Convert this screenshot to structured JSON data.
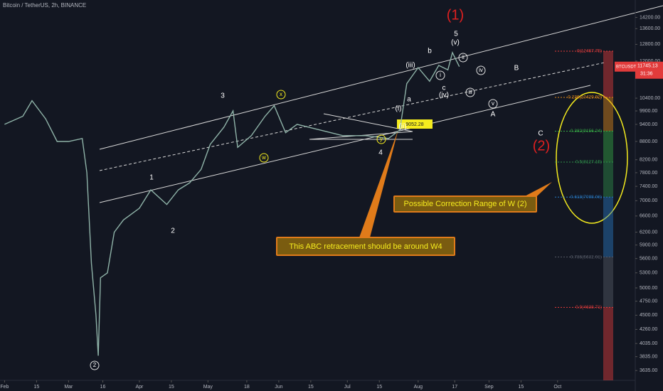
{
  "chart_data": {
    "type": "line",
    "title": "Bitcoin / TetherUS, 2h, BINANCE",
    "log_scale": true,
    "grid": false,
    "xlim": [
      30,
      308
    ],
    "ylim": [
      3500,
      15190
    ],
    "x": [
      32,
      40,
      44,
      50,
      55,
      60,
      66,
      68,
      70,
      72,
      73,
      74,
      77,
      80,
      84,
      91,
      96,
      103,
      108,
      113,
      118,
      122,
      128,
      132,
      134,
      140,
      146,
      150,
      155,
      160,
      170,
      180,
      190,
      200,
      205,
      208,
      213,
      218,
      222,
      226,
      228,
      231
    ],
    "series": [
      {
        "name": "BTCUSDT",
        "color": "#8fb3a8",
        "values": [
          9400,
          9700,
          10300,
          9600,
          8800,
          8800,
          8900,
          7800,
          5500,
          4500,
          3850,
          5200,
          5300,
          6200,
          6500,
          6800,
          7300,
          6900,
          7300,
          7500,
          7900,
          8700,
          9300,
          9900,
          8600,
          9000,
          9700,
          10100,
          9100,
          9400,
          9200,
          9000,
          9000,
          8900,
          9200,
          11000,
          11700,
          11100,
          11800,
          11600,
          12400,
          11745.13
        ]
      }
    ],
    "xticks": [
      {
        "value": 32,
        "label": "Feb"
      },
      {
        "value": 46,
        "label": "15"
      },
      {
        "value": 60,
        "label": "Mar"
      },
      {
        "value": 75,
        "label": "16"
      },
      {
        "value": 91,
        "label": "Apr"
      },
      {
        "value": 105,
        "label": "15"
      },
      {
        "value": 121,
        "label": "May"
      },
      {
        "value": 138,
        "label": "18"
      },
      {
        "value": 152,
        "label": "Jun"
      },
      {
        "value": 166,
        "label": "15"
      },
      {
        "value": 182,
        "label": "Jul"
      },
      {
        "value": 196,
        "label": "15"
      },
      {
        "value": 213,
        "label": "Aug"
      },
      {
        "value": 229,
        "label": "17"
      },
      {
        "value": 244,
        "label": "Sep"
      },
      {
        "value": 258,
        "label": "15"
      },
      {
        "value": 274,
        "label": "Oct"
      }
    ],
    "yticks": [
      {
        "value": 14200,
        "label": "14200.00"
      },
      {
        "value": 13600,
        "label": "13600.00"
      },
      {
        "value": 12800,
        "label": "12800.00"
      },
      {
        "value": 12000,
        "label": "12000.00"
      },
      {
        "value": 10400,
        "label": "10400.00"
      },
      {
        "value": 9900,
        "label": "9900.00"
      },
      {
        "value": 9400,
        "label": "9400.00"
      },
      {
        "value": 8800,
        "label": "8800.00"
      },
      {
        "value": 8200,
        "label": "8200.00"
      },
      {
        "value": 7800,
        "label": "7800.00"
      },
      {
        "value": 7400,
        "label": "7400.00"
      },
      {
        "value": 7000,
        "label": "7000.00"
      },
      {
        "value": 6600,
        "label": "6600.00"
      },
      {
        "value": 6200,
        "label": "6200.00"
      },
      {
        "value": 5900,
        "label": "5900.00"
      },
      {
        "value": 5600,
        "label": "5600.00"
      },
      {
        "value": 5300,
        "label": "5300.00"
      },
      {
        "value": 5000,
        "label": "5000.00"
      },
      {
        "value": 4750,
        "label": "4750.00"
      },
      {
        "value": 4500,
        "label": "4500.00"
      },
      {
        "value": 4260,
        "label": "4260.00"
      },
      {
        "value": 4035,
        "label": "4035.00"
      },
      {
        "value": 3835,
        "label": "3835.00"
      },
      {
        "value": 3635,
        "label": "3635.00"
      }
    ],
    "fib_levels": [
      {
        "value": 12467.75,
        "label": "0(12467.75)"
      },
      {
        "value": 10429.92,
        "label": "0.236(10429.92)"
      },
      {
        "value": 9156.24,
        "label": "0.382(9156.24)"
      },
      {
        "value": 8127.15,
        "label": "0.5(8127.15)"
      },
      {
        "value": 7098.06,
        "label": "0.618(7098.06)"
      },
      {
        "value": 5632.91,
        "label": "0.786(5632.91)"
      },
      {
        "value": 4638.71,
        "label": "0.9(4638.71)"
      }
    ],
    "annotations": [
      "(1)",
      "5",
      "(v)",
      "b",
      "(iii)",
      "ii",
      "i",
      "iv",
      "iii",
      "B",
      "c",
      "(iv)",
      "v",
      "A",
      "3",
      "x",
      "w",
      "1",
      "2",
      "(i)",
      "a",
      "(ii)",
      "y",
      "4",
      "C",
      "(2)",
      "2"
    ],
    "callouts": [
      "Possible Correction Range of W (2)",
      "This ABC retracement should be around W4"
    ],
    "price_label": 9052.28,
    "price_tag": {
      "symbol": "BTCUSDT",
      "price": 11745.13,
      "countdown": "31:36"
    }
  }
}
